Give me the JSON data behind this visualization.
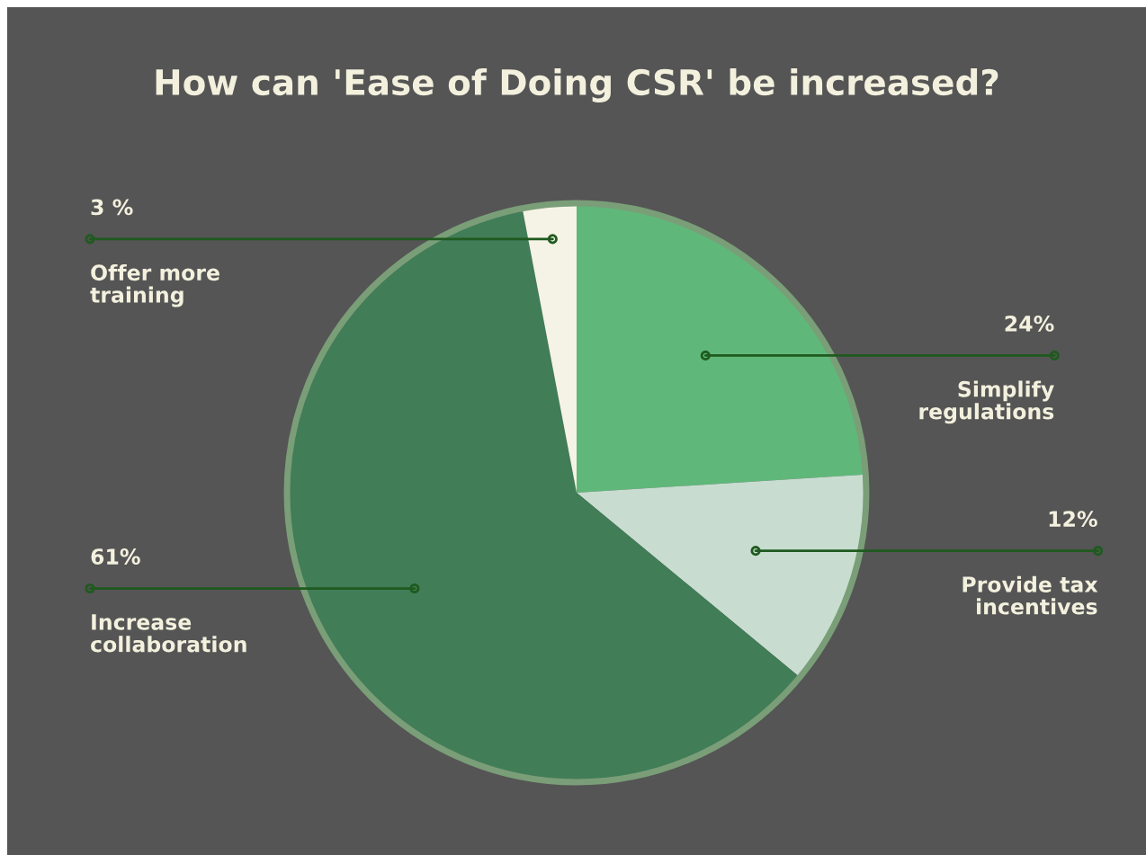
{
  "chart_data": {
    "type": "pie",
    "title": "How can 'Ease of Doing CSR' be increased?",
    "categories": [
      "Simplify regulations",
      "Provide tax incentives",
      "Increase collaboration",
      "Offer more training"
    ],
    "values": [
      24,
      12,
      61,
      3
    ],
    "colors": [
      "#5fb87a",
      "#c8ddd0",
      "#417d57",
      "#f5f3e6"
    ],
    "value_labels": [
      "24%",
      "12%",
      "61%",
      "3 %"
    ]
  }
}
